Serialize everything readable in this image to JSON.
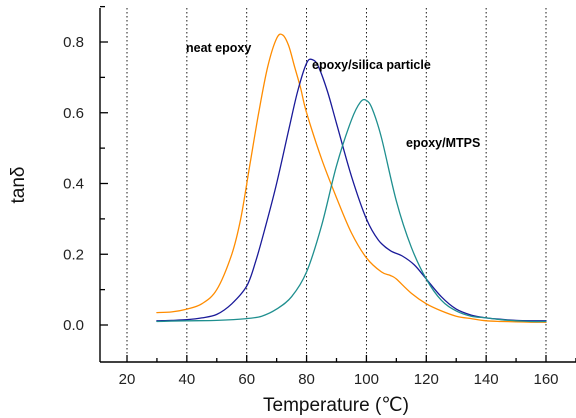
{
  "chart_data": {
    "type": "line",
    "xlabel": "Temperature (℃)",
    "ylabel": "tanδ",
    "xlim": [
      10,
      165
    ],
    "ylim": [
      -0.1,
      0.9
    ],
    "xticks": [
      "20",
      "40",
      "60",
      "80",
      "100",
      "120",
      "140",
      "160"
    ],
    "yticks": [
      "0.0",
      "0.2",
      "0.4",
      "0.6",
      "0.8"
    ],
    "grid": "vertical dotted lines at x ticks",
    "annotations": [
      {
        "text": "neat epoxy",
        "series": "neat epoxy"
      },
      {
        "text": "epoxy/silica particle",
        "series": "epoxy/silica particle"
      },
      {
        "text": "epoxy/MTPS",
        "series": "epoxy/MTPS"
      }
    ],
    "series": [
      {
        "name": "neat epoxy",
        "color": "#ff8c00",
        "x": [
          30,
          35,
          40,
          45,
          50,
          55,
          58,
          61,
          64,
          67,
          70,
          72,
          74,
          76,
          78,
          80,
          85,
          90,
          95,
          100,
          105,
          108,
          110,
          115,
          120,
          125,
          130,
          135,
          140,
          145,
          150,
          155,
          160
        ],
        "y": [
          0.035,
          0.037,
          0.045,
          0.06,
          0.1,
          0.2,
          0.3,
          0.45,
          0.6,
          0.73,
          0.81,
          0.82,
          0.79,
          0.73,
          0.67,
          0.6,
          0.47,
          0.36,
          0.26,
          0.19,
          0.15,
          0.14,
          0.13,
          0.09,
          0.06,
          0.04,
          0.025,
          0.018,
          0.012,
          0.01,
          0.009,
          0.008,
          0.008
        ]
      },
      {
        "name": "epoxy/silica particle",
        "color": "#1a1a99",
        "x": [
          30,
          35,
          40,
          45,
          50,
          55,
          60,
          63,
          66,
          70,
          74,
          77,
          80,
          82,
          84,
          87,
          90,
          95,
          100,
          104,
          108,
          112,
          116,
          120,
          125,
          130,
          135,
          140,
          145,
          150,
          155,
          160
        ],
        "y": [
          0.012,
          0.013,
          0.015,
          0.02,
          0.03,
          0.06,
          0.11,
          0.18,
          0.27,
          0.4,
          0.55,
          0.66,
          0.74,
          0.75,
          0.73,
          0.66,
          0.57,
          0.42,
          0.3,
          0.24,
          0.21,
          0.195,
          0.17,
          0.13,
          0.08,
          0.045,
          0.028,
          0.02,
          0.016,
          0.013,
          0.012,
          0.012
        ]
      },
      {
        "name": "epoxy/MTPS",
        "color": "#1f8f8f",
        "x": [
          30,
          40,
          50,
          60,
          65,
          70,
          75,
          80,
          85,
          90,
          95,
          98,
          100,
          102,
          105,
          110,
          115,
          120,
          125,
          130,
          135,
          140,
          145,
          150,
          155,
          160
        ],
        "y": [
          0.01,
          0.012,
          0.013,
          0.018,
          0.025,
          0.045,
          0.08,
          0.15,
          0.28,
          0.45,
          0.58,
          0.63,
          0.635,
          0.61,
          0.53,
          0.35,
          0.22,
          0.13,
          0.07,
          0.04,
          0.025,
          0.02,
          0.015,
          0.012,
          0.01,
          0.01
        ]
      }
    ]
  }
}
